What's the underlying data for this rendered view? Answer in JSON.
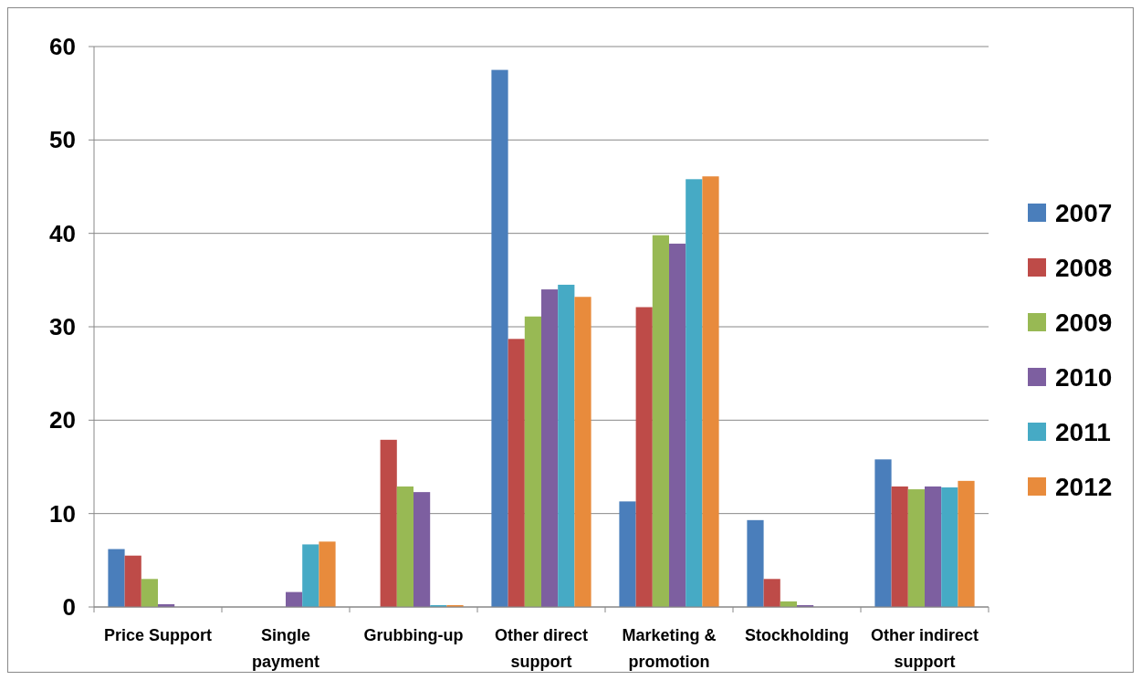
{
  "chart_data": {
    "type": "bar",
    "categories": [
      "Price Support",
      "Single payment",
      "Grubbing-up",
      "Other direct support",
      "Marketing & promotion",
      "Stockholding",
      "Other indirect support"
    ],
    "series": [
      {
        "name": "2007",
        "color": "#4a7ebb",
        "values": [
          6.2,
          null,
          null,
          57.5,
          11.3,
          9.3,
          15.8
        ]
      },
      {
        "name": "2008",
        "color": "#be4b48",
        "values": [
          5.5,
          null,
          17.9,
          28.7,
          32.1,
          3.0,
          12.9
        ]
      },
      {
        "name": "2009",
        "color": "#98b954",
        "values": [
          3.0,
          null,
          12.9,
          31.1,
          39.8,
          0.6,
          12.6
        ]
      },
      {
        "name": "2010",
        "color": "#7d5fa0",
        "values": [
          0.3,
          1.6,
          12.3,
          34.0,
          38.9,
          0.2,
          12.9
        ]
      },
      {
        "name": "2011",
        "color": "#46aac5",
        "values": [
          null,
          6.7,
          0.2,
          34.5,
          45.8,
          null,
          12.8
        ]
      },
      {
        "name": "2012",
        "color": "#e88b3c",
        "values": [
          null,
          7.0,
          0.2,
          33.2,
          46.1,
          null,
          13.5
        ]
      }
    ],
    "ylim": [
      0,
      60
    ],
    "yticks": [
      0,
      10,
      20,
      30,
      40,
      50,
      60
    ],
    "grid": "y",
    "legend": "right"
  }
}
